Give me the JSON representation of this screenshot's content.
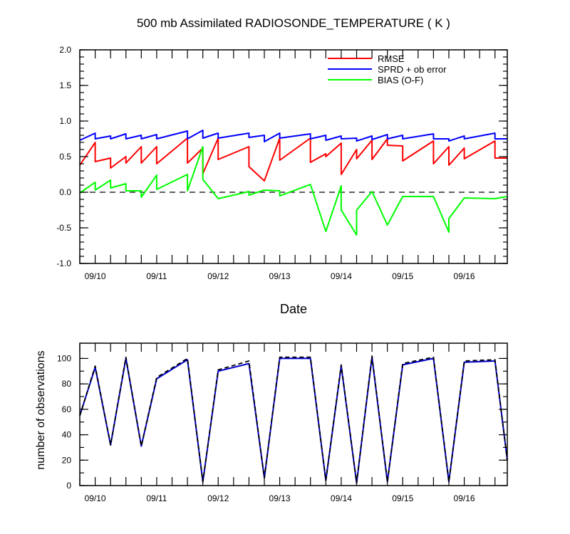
{
  "chart_data": [
    {
      "type": "line",
      "title": "500 mb Assimilated RADIOSONDE_TEMPERATURE ( K )",
      "xlabel": "Date",
      "ylabel": "",
      "xlim": [
        9.9,
        16.85
      ],
      "ylim": [
        -1.0,
        2.0
      ],
      "yticks": [
        "-1.0",
        "-0.5",
        "0.0",
        "0.5",
        "1.0",
        "1.5",
        "2.0"
      ],
      "xtick_labels": [
        "09/10",
        "09/11",
        "09/12",
        "09/13",
        "09/14",
        "09/15",
        "09/16"
      ],
      "zero_line": "dashed",
      "legend_position": "top-right",
      "series": [
        {
          "name": "RMSE",
          "color": "#ff0000",
          "x": [
            9.9,
            10.15,
            10.15,
            10.4,
            10.4,
            10.65,
            10.65,
            10.9,
            10.9,
            11.15,
            11.15,
            11.65,
            11.65,
            11.9,
            11.9,
            12.15,
            12.15,
            12.65,
            12.65,
            12.9,
            12.9,
            13.15,
            13.15,
            13.65,
            13.65,
            13.9,
            13.9,
            14.15,
            14.15,
            14.4,
            14.4,
            14.65,
            14.65,
            14.9,
            14.9,
            15.15,
            15.15,
            15.65,
            15.65,
            15.9,
            15.9,
            16.15,
            16.15,
            16.65,
            16.65,
            16.85
          ],
          "y": [
            0.38,
            0.7,
            0.43,
            0.48,
            0.34,
            0.5,
            0.41,
            0.64,
            0.41,
            0.64,
            0.4,
            0.76,
            0.41,
            0.62,
            0.26,
            0.76,
            0.46,
            0.64,
            0.36,
            0.16,
            0.16,
            0.76,
            0.45,
            0.76,
            0.42,
            0.54,
            0.5,
            0.69,
            0.25,
            0.6,
            0.47,
            0.73,
            0.46,
            0.75,
            0.66,
            0.65,
            0.44,
            0.72,
            0.4,
            0.64,
            0.38,
            0.62,
            0.47,
            0.72,
            0.48,
            0.48
          ]
        },
        {
          "name": "SPRD + ob error",
          "color": "#0000ff",
          "x": [
            9.9,
            10.15,
            10.15,
            10.4,
            10.4,
            10.65,
            10.65,
            10.9,
            10.9,
            11.15,
            11.15,
            11.65,
            11.65,
            11.9,
            11.9,
            12.15,
            12.15,
            12.65,
            12.65,
            12.9,
            12.9,
            13.15,
            13.15,
            13.65,
            13.65,
            13.9,
            13.9,
            14.15,
            14.15,
            14.4,
            14.4,
            14.65,
            14.65,
            14.9,
            14.9,
            15.15,
            15.15,
            15.65,
            15.65,
            15.9,
            15.9,
            16.15,
            16.15,
            16.65,
            16.65,
            16.85
          ],
          "y": [
            0.73,
            0.83,
            0.75,
            0.79,
            0.75,
            0.82,
            0.75,
            0.8,
            0.75,
            0.81,
            0.75,
            0.86,
            0.75,
            0.87,
            0.76,
            0.83,
            0.76,
            0.83,
            0.77,
            0.8,
            0.71,
            0.83,
            0.76,
            0.82,
            0.75,
            0.8,
            0.73,
            0.79,
            0.75,
            0.76,
            0.72,
            0.79,
            0.74,
            0.81,
            0.75,
            0.8,
            0.75,
            0.82,
            0.75,
            0.75,
            0.72,
            0.79,
            0.75,
            0.83,
            0.75,
            0.75
          ]
        },
        {
          "name": "BIAS (O-F)",
          "color": "#00ff00",
          "x": [
            9.9,
            10.15,
            10.15,
            10.4,
            10.4,
            10.65,
            10.65,
            10.9,
            10.9,
            11.15,
            11.15,
            11.65,
            11.65,
            11.9,
            11.9,
            12.15,
            12.15,
            12.65,
            12.65,
            12.9,
            12.9,
            13.15,
            13.15,
            13.65,
            13.65,
            13.9,
            13.9,
            14.15,
            14.15,
            14.4,
            14.4,
            14.65,
            14.65,
            14.9,
            14.9,
            15.15,
            15.15,
            15.65,
            15.65,
            15.9,
            15.9,
            16.15,
            16.15,
            16.65,
            16.65,
            16.85
          ],
          "y": [
            -0.01,
            0.14,
            0.03,
            0.17,
            0.06,
            0.12,
            0.02,
            0.02,
            -0.07,
            0.24,
            0.04,
            0.25,
            0.02,
            0.64,
            0.18,
            -0.09,
            -0.09,
            0.01,
            -0.04,
            0.03,
            0.03,
            0.02,
            -0.05,
            0.11,
            0.11,
            -0.55,
            -0.55,
            0.09,
            -0.25,
            -0.6,
            -0.25,
            0.01,
            0.01,
            -0.46,
            -0.46,
            -0.06,
            -0.06,
            -0.06,
            -0.06,
            -0.56,
            -0.37,
            -0.08,
            -0.08,
            -0.09,
            -0.09,
            -0.06
          ]
        }
      ]
    },
    {
      "type": "line",
      "title": "",
      "xlabel": "",
      "ylabel": "number of observations",
      "xlim": [
        9.9,
        16.85
      ],
      "ylim": [
        0,
        112
      ],
      "yticks": [
        "0",
        "20",
        "40",
        "60",
        "80",
        "100"
      ],
      "xtick_labels": [
        "09/10",
        "09/11",
        "09/12",
        "09/13",
        "09/14",
        "09/15",
        "09/16"
      ],
      "series": [
        {
          "color": "#0000cc",
          "style": "solid",
          "x": [
            9.9,
            10.15,
            10.4,
            10.65,
            10.9,
            11.15,
            11.65,
            11.9,
            12.15,
            12.65,
            12.9,
            13.15,
            13.65,
            13.9,
            14.15,
            14.4,
            14.65,
            14.9,
            15.15,
            15.65,
            15.9,
            16.15,
            16.65,
            16.85
          ],
          "y": [
            55,
            93,
            32,
            100,
            31,
            84,
            99,
            3,
            90,
            96,
            6,
            100,
            100,
            4,
            94,
            2,
            101,
            3,
            95,
            100,
            3,
            97,
            98,
            20
          ]
        },
        {
          "color": "#000000",
          "style": "dashed",
          "x": [
            9.9,
            10.15,
            10.4,
            10.65,
            10.9,
            11.15,
            11.65,
            11.9,
            12.15,
            12.65,
            12.9,
            13.15,
            13.65,
            13.9,
            14.15,
            14.4,
            14.65,
            14.9,
            15.15,
            15.65,
            15.9,
            16.15,
            16.65,
            16.85
          ],
          "y": [
            55,
            94,
            32,
            101,
            31,
            85,
            100,
            3,
            91,
            98,
            6,
            101,
            101,
            4,
            95,
            2,
            102,
            3,
            96,
            101,
            3,
            98,
            99,
            20
          ]
        }
      ]
    }
  ]
}
